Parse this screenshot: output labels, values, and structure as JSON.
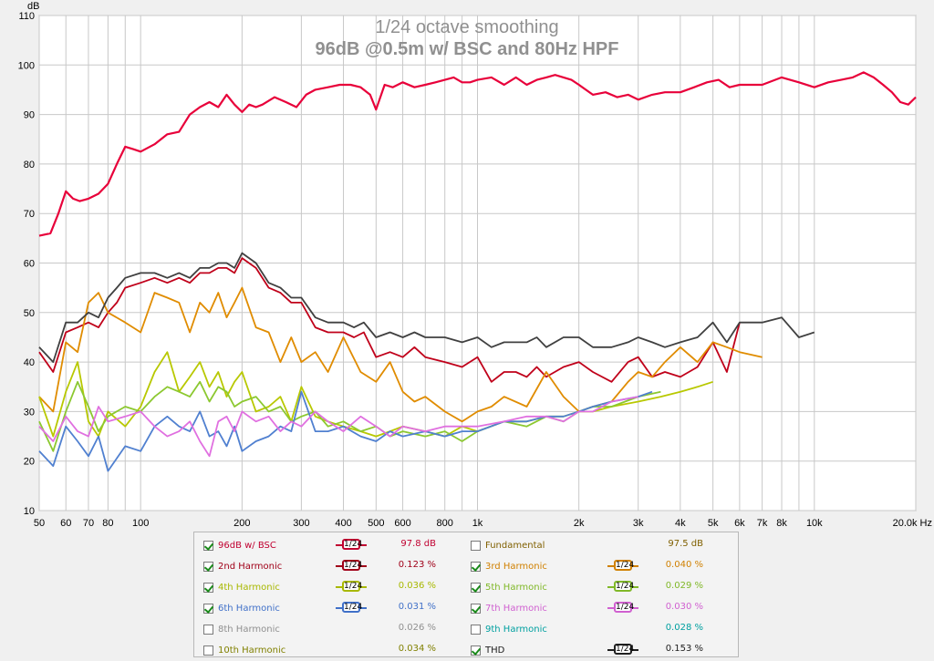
{
  "chart_data": {
    "type": "line",
    "title": "1/24 octave smoothing",
    "subtitle": "96dB @0.5m w/ BSC and 80Hz HPF",
    "ylabel": "dB",
    "xlabel": "",
    "x_unit": "Hz",
    "x_scale": "log",
    "xlim": [
      50,
      20000
    ],
    "ylim": [
      10,
      110
    ],
    "grid": true,
    "x_ticks": [
      {
        "v": 50,
        "label": "50"
      },
      {
        "v": 60,
        "label": "60"
      },
      {
        "v": 70,
        "label": "70"
      },
      {
        "v": 80,
        "label": "80"
      },
      {
        "v": 100,
        "label": "100"
      },
      {
        "v": 200,
        "label": "200"
      },
      {
        "v": 300,
        "label": "300"
      },
      {
        "v": 400,
        "label": "400"
      },
      {
        "v": 500,
        "label": "500"
      },
      {
        "v": 600,
        "label": "600"
      },
      {
        "v": 800,
        "label": "800"
      },
      {
        "v": 1000,
        "label": "1k"
      },
      {
        "v": 2000,
        "label": "2k"
      },
      {
        "v": 3000,
        "label": "3k"
      },
      {
        "v": 4000,
        "label": "4k"
      },
      {
        "v": 5000,
        "label": "5k"
      },
      {
        "v": 6000,
        "label": "6k"
      },
      {
        "v": 7000,
        "label": "7k"
      },
      {
        "v": 8000,
        "label": "8k"
      },
      {
        "v": 10000,
        "label": "10k"
      },
      {
        "v": 20000,
        "label": "20.0k Hz"
      }
    ],
    "y_ticks": [
      10,
      20,
      30,
      40,
      50,
      60,
      70,
      80,
      90,
      100,
      110
    ],
    "series": [
      {
        "name": "96dB w/ BSC",
        "color": "#e8003a",
        "x": [
          50,
          54,
          57,
          60,
          63,
          66,
          70,
          75,
          80,
          85,
          90,
          95,
          100,
          110,
          120,
          130,
          140,
          150,
          160,
          170,
          180,
          190,
          200,
          210,
          220,
          230,
          250,
          270,
          290,
          310,
          330,
          360,
          390,
          420,
          450,
          480,
          500,
          530,
          560,
          600,
          650,
          700,
          750,
          800,
          850,
          900,
          950,
          1000,
          1100,
          1200,
          1300,
          1400,
          1500,
          1600,
          1700,
          1800,
          1900,
          2000,
          2200,
          2400,
          2600,
          2800,
          3000,
          3300,
          3600,
          4000,
          4400,
          4800,
          5200,
          5600,
          6000,
          7000,
          8000,
          9000,
          10000,
          11000,
          12000,
          13000,
          14000,
          15000,
          16000,
          17000,
          18000,
          19000,
          20000
        ],
        "y": [
          65.5,
          66,
          70,
          74.5,
          73,
          72.5,
          73,
          74,
          76,
          80,
          83.5,
          83,
          82.5,
          84,
          86,
          86.5,
          90,
          91.5,
          92.5,
          91.5,
          94,
          92,
          90.5,
          92,
          91.5,
          92,
          93.5,
          92.5,
          91.5,
          94,
          95,
          95.5,
          96,
          96,
          95.5,
          94,
          91,
          96,
          95.5,
          96.5,
          95.5,
          96,
          96.5,
          97,
          97.5,
          96.5,
          96.5,
          97,
          97.5,
          96,
          97.5,
          96,
          97,
          97.5,
          98,
          97.5,
          97,
          96,
          94,
          94.5,
          93.5,
          94,
          93,
          94,
          94.5,
          94.5,
          95.5,
          96.5,
          97,
          95.5,
          96,
          96,
          97.5,
          96.5,
          95.5,
          96.5,
          97,
          97.5,
          98.5,
          97.5,
          96,
          94.5,
          92.5,
          92,
          93.5
        ]
      },
      {
        "name": "2nd Harmonic",
        "color": "#c0001a",
        "x": [
          50,
          55,
          60,
          65,
          70,
          75,
          80,
          85,
          90,
          100,
          110,
          120,
          130,
          140,
          150,
          160,
          170,
          180,
          190,
          200,
          220,
          240,
          260,
          280,
          300,
          330,
          360,
          400,
          430,
          460,
          500,
          550,
          600,
          650,
          700,
          800,
          900,
          1000,
          1100,
          1200,
          1300,
          1400,
          1500,
          1600,
          1800,
          2000,
          2200,
          2500,
          2800,
          3000,
          3300,
          3600,
          4000,
          4500,
          5000,
          5500,
          6000
        ],
        "y": [
          42,
          38,
          46,
          47,
          48,
          47,
          50,
          52,
          55,
          56,
          57,
          56,
          57,
          56,
          58,
          58,
          59,
          59,
          58,
          61,
          59,
          55,
          54,
          52,
          52,
          47,
          46,
          46,
          45,
          46,
          41,
          42,
          41,
          43,
          41,
          40,
          39,
          41,
          36,
          38,
          38,
          37,
          39,
          37,
          39,
          40,
          38,
          36,
          40,
          41,
          37,
          38,
          37,
          39,
          44,
          38,
          48
        ]
      },
      {
        "name": "3rd Harmonic",
        "color": "#e08c00",
        "x": [
          50,
          55,
          60,
          65,
          70,
          75,
          80,
          90,
          100,
          110,
          120,
          130,
          140,
          150,
          160,
          170,
          180,
          190,
          200,
          220,
          240,
          260,
          280,
          300,
          330,
          360,
          400,
          450,
          500,
          550,
          600,
          650,
          700,
          800,
          900,
          1000,
          1100,
          1200,
          1400,
          1600,
          1800,
          2000,
          2200,
          2500,
          2800,
          3000,
          3300,
          3600,
          4000,
          4500,
          5000,
          5500,
          6000,
          7000
        ],
        "y": [
          33,
          30,
          44,
          42,
          52,
          54,
          50,
          48,
          46,
          54,
          53,
          52,
          46,
          52,
          50,
          54,
          49,
          52,
          55,
          47,
          46,
          40,
          45,
          40,
          42,
          38,
          45,
          38,
          36,
          40,
          34,
          32,
          33,
          30,
          28,
          30,
          31,
          33,
          31,
          38,
          33,
          30,
          31,
          32,
          36,
          38,
          37,
          40,
          43,
          40,
          44,
          43,
          42,
          41
        ]
      },
      {
        "name": "4th Harmonic",
        "color": "#b8c800",
        "x": [
          50,
          55,
          60,
          65,
          70,
          75,
          80,
          90,
          100,
          110,
          120,
          130,
          140,
          150,
          160,
          170,
          180,
          190,
          200,
          220,
          240,
          260,
          280,
          300,
          330,
          360,
          400,
          450,
          500,
          550,
          600,
          700,
          800,
          900,
          1000,
          1200,
          1400,
          1600,
          1800,
          2000,
          2200,
          2500,
          3000,
          3500,
          4000,
          4500,
          5000
        ],
        "y": [
          33,
          25,
          34,
          40,
          28,
          25,
          30,
          27,
          31,
          38,
          42,
          34,
          37,
          40,
          35,
          38,
          33,
          36,
          38,
          30,
          31,
          33,
          28,
          35,
          29,
          28,
          27,
          26,
          25,
          26,
          27,
          26,
          25,
          27,
          26,
          28,
          28,
          29,
          29,
          30,
          30,
          31,
          32,
          33,
          34,
          35,
          36
        ]
      },
      {
        "name": "5th Harmonic",
        "color": "#8cc830",
        "x": [
          50,
          55,
          60,
          65,
          70,
          75,
          80,
          90,
          100,
          110,
          120,
          130,
          140,
          150,
          160,
          170,
          180,
          190,
          200,
          220,
          240,
          260,
          280,
          300,
          330,
          360,
          400,
          450,
          500,
          550,
          600,
          700,
          800,
          900,
          1000,
          1200,
          1400,
          1600,
          1800,
          2000,
          2200,
          2500,
          3000,
          3500
        ],
        "y": [
          28,
          22,
          30,
          36,
          31,
          26,
          29,
          31,
          30,
          33,
          35,
          34,
          33,
          36,
          32,
          35,
          34,
          31,
          32,
          33,
          30,
          31,
          28,
          29,
          30,
          27,
          28,
          26,
          27,
          25,
          26,
          25,
          26,
          24,
          26,
          28,
          27,
          29,
          28,
          30,
          31,
          31,
          33,
          34
        ]
      },
      {
        "name": "6th Harmonic",
        "color": "#5080d0",
        "x": [
          50,
          55,
          60,
          65,
          70,
          75,
          80,
          90,
          100,
          110,
          120,
          130,
          140,
          150,
          160,
          170,
          180,
          190,
          200,
          220,
          240,
          260,
          280,
          300,
          330,
          360,
          400,
          450,
          500,
          550,
          600,
          700,
          800,
          900,
          1000,
          1200,
          1400,
          1600,
          1800,
          2000,
          2200,
          2500,
          3000,
          3300
        ],
        "y": [
          22,
          19,
          27,
          24,
          21,
          25,
          18,
          23,
          22,
          27,
          29,
          27,
          26,
          30,
          25,
          26,
          23,
          27,
          22,
          24,
          25,
          27,
          26,
          34,
          26,
          26,
          27,
          25,
          24,
          26,
          25,
          26,
          25,
          26,
          26,
          28,
          28,
          29,
          29,
          30,
          31,
          32,
          33,
          34
        ]
      },
      {
        "name": "7th Harmonic",
        "color": "#e070e0",
        "x": [
          50,
          55,
          60,
          65,
          70,
          75,
          80,
          90,
          100,
          110,
          120,
          130,
          140,
          150,
          160,
          170,
          180,
          190,
          200,
          220,
          240,
          260,
          280,
          300,
          330,
          360,
          400,
          450,
          500,
          550,
          600,
          700,
          800,
          900,
          1000,
          1200,
          1400,
          1600,
          1800,
          2000,
          2200,
          2500,
          3000
        ],
        "y": [
          27,
          24,
          29,
          26,
          25,
          31,
          28,
          29,
          30,
          27,
          25,
          26,
          28,
          24,
          21,
          28,
          29,
          26,
          30,
          28,
          29,
          26,
          28,
          27,
          30,
          28,
          26,
          29,
          27,
          25,
          27,
          26,
          27,
          27,
          27,
          28,
          29,
          29,
          28,
          30,
          30,
          32,
          33
        ]
      },
      {
        "name": "THD",
        "color": "#404040",
        "x": [
          50,
          55,
          60,
          65,
          70,
          75,
          80,
          85,
          90,
          100,
          110,
          120,
          130,
          140,
          150,
          160,
          170,
          180,
          190,
          200,
          220,
          240,
          260,
          280,
          300,
          330,
          360,
          400,
          430,
          460,
          500,
          550,
          600,
          650,
          700,
          800,
          900,
          1000,
          1100,
          1200,
          1300,
          1400,
          1500,
          1600,
          1800,
          2000,
          2200,
          2500,
          2800,
          3000,
          3300,
          3600,
          4000,
          4500,
          5000,
          5500,
          6000,
          7000,
          8000,
          9000,
          10000
        ],
        "y": [
          43,
          40,
          48,
          48,
          50,
          49,
          53,
          55,
          57,
          58,
          58,
          57,
          58,
          57,
          59,
          59,
          60,
          60,
          59,
          62,
          60,
          56,
          55,
          53,
          53,
          49,
          48,
          48,
          47,
          48,
          45,
          46,
          45,
          46,
          45,
          45,
          44,
          45,
          43,
          44,
          44,
          44,
          45,
          43,
          45,
          45,
          43,
          43,
          44,
          45,
          44,
          43,
          44,
          45,
          48,
          44,
          48,
          48,
          49,
          45,
          46
        ]
      }
    ]
  },
  "legend": {
    "rows": [
      [
        {
          "checked": true,
          "name": "96dB w/ BSC",
          "color": "#c00030",
          "smooth": "1/24",
          "value": "97.8 dB",
          "value_color": "#c00030"
        },
        {
          "checked": false,
          "name": "Fundamental",
          "color": "#806000",
          "smooth": "",
          "value": "97.5 dB",
          "value_color": "#806000"
        }
      ],
      [
        {
          "checked": true,
          "name": "2nd Harmonic",
          "color": "#a00018",
          "smooth": "1/24",
          "value": "0.123 %",
          "value_color": "#a00018"
        },
        {
          "checked": true,
          "name": "3rd Harmonic",
          "color": "#d08000",
          "smooth": "1/24",
          "value": "0.040 %",
          "value_color": "#d08000"
        }
      ],
      [
        {
          "checked": true,
          "name": "4th Harmonic",
          "color": "#a8b800",
          "smooth": "1/24",
          "value": "0.036 %",
          "value_color": "#a8b800"
        },
        {
          "checked": true,
          "name": "5th Harmonic",
          "color": "#80b828",
          "smooth": "1/24",
          "value": "0.029 %",
          "value_color": "#80b828"
        }
      ],
      [
        {
          "checked": true,
          "name": "6th Harmonic",
          "color": "#4070c8",
          "smooth": "1/24",
          "value": "0.031 %",
          "value_color": "#4070c8"
        },
        {
          "checked": true,
          "name": "7th Harmonic",
          "color": "#d060d0",
          "smooth": "1/24",
          "value": "0.030 %",
          "value_color": "#d060d0"
        }
      ],
      [
        {
          "checked": false,
          "name": "8th Harmonic",
          "color": "#909090",
          "smooth": "",
          "value": "0.026 %",
          "value_color": "#909090"
        },
        {
          "checked": false,
          "name": "9th Harmonic",
          "color": "#00a0a0",
          "smooth": "",
          "value": "0.028 %",
          "value_color": "#00a0a0"
        }
      ],
      [
        {
          "checked": false,
          "name": "10th Harmonic",
          "color": "#808000",
          "smooth": "",
          "value": "0.034 %",
          "value_color": "#808000"
        },
        {
          "checked": true,
          "name": "THD",
          "color": "#202020",
          "smooth": "1/24",
          "value": "0.153 %",
          "value_color": "#202020"
        }
      ]
    ]
  }
}
